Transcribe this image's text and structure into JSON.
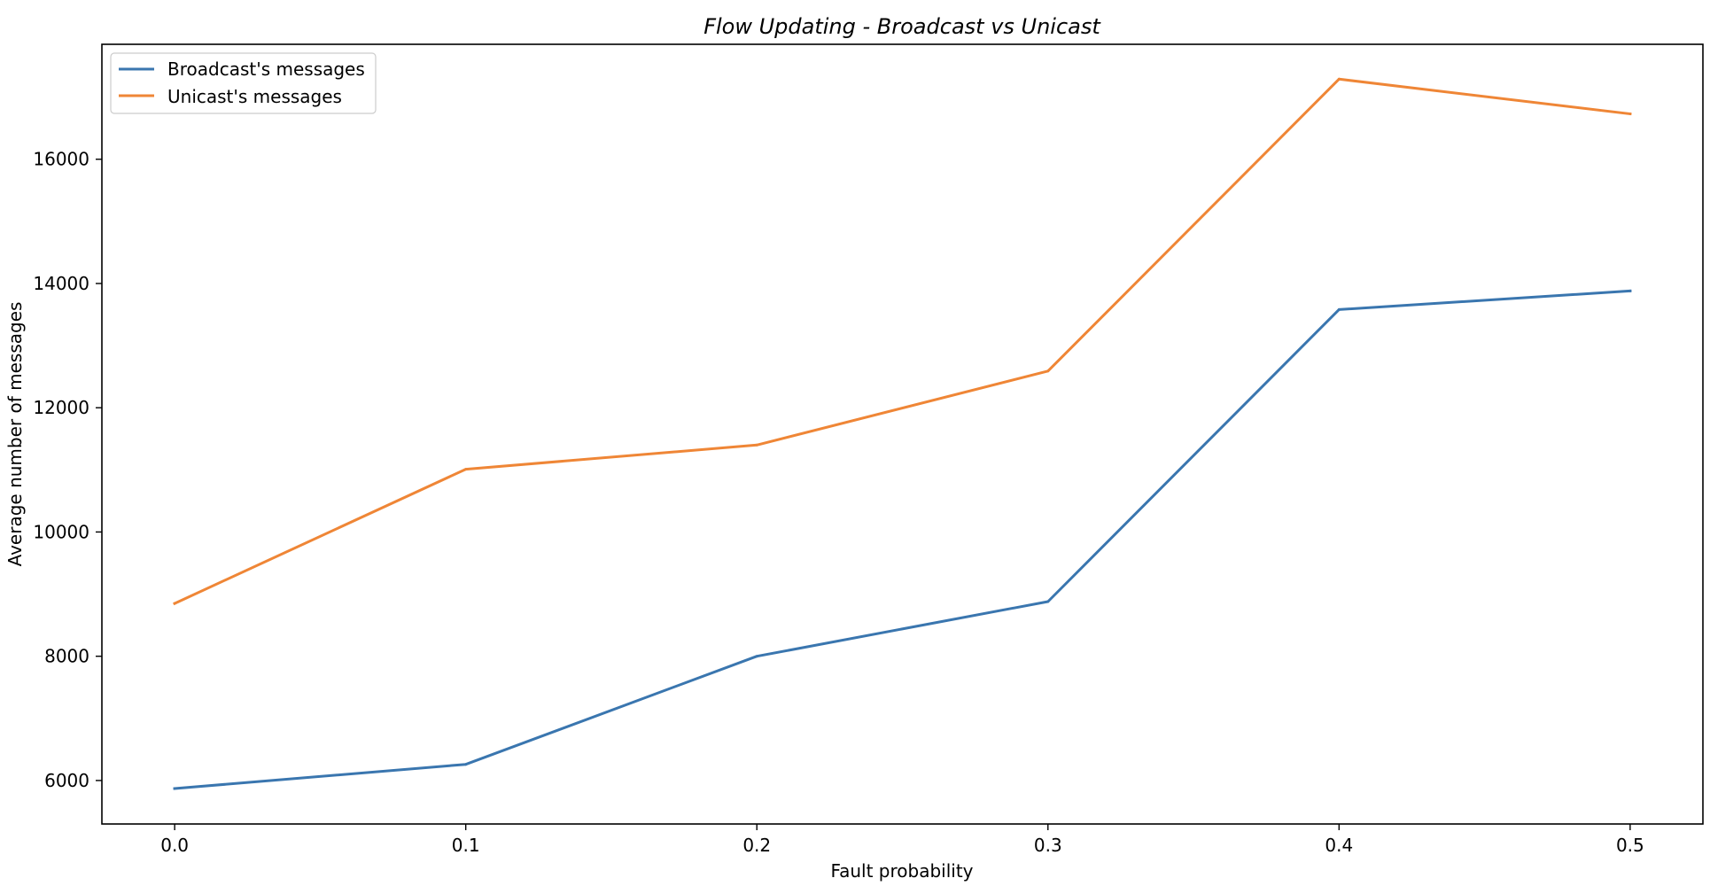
{
  "chart_data": {
    "type": "line",
    "title": "Flow Updating - Broadcast vs Unicast",
    "xlabel": "Fault probability",
    "ylabel": "Average number of messages",
    "x": [
      0.0,
      0.1,
      0.2,
      0.3,
      0.4,
      0.5
    ],
    "x_tick_labels": [
      "0.0",
      "0.1",
      "0.2",
      "0.3",
      "0.4",
      "0.5"
    ],
    "y_ticks": [
      6000,
      8000,
      10000,
      12000,
      14000,
      16000
    ],
    "xlim": [
      -0.025,
      0.525
    ],
    "ylim": [
      5300,
      17850
    ],
    "grid": false,
    "legend_position": "upper-left",
    "series": [
      {
        "name": "Broadcast's messages",
        "color": "#3a76af",
        "values": [
          5870,
          6260,
          8000,
          8880,
          13580,
          13880
        ]
      },
      {
        "name": "Unicast's messages",
        "color": "#ef8636",
        "values": [
          8850,
          11010,
          11400,
          12590,
          17290,
          16730
        ]
      }
    ]
  }
}
